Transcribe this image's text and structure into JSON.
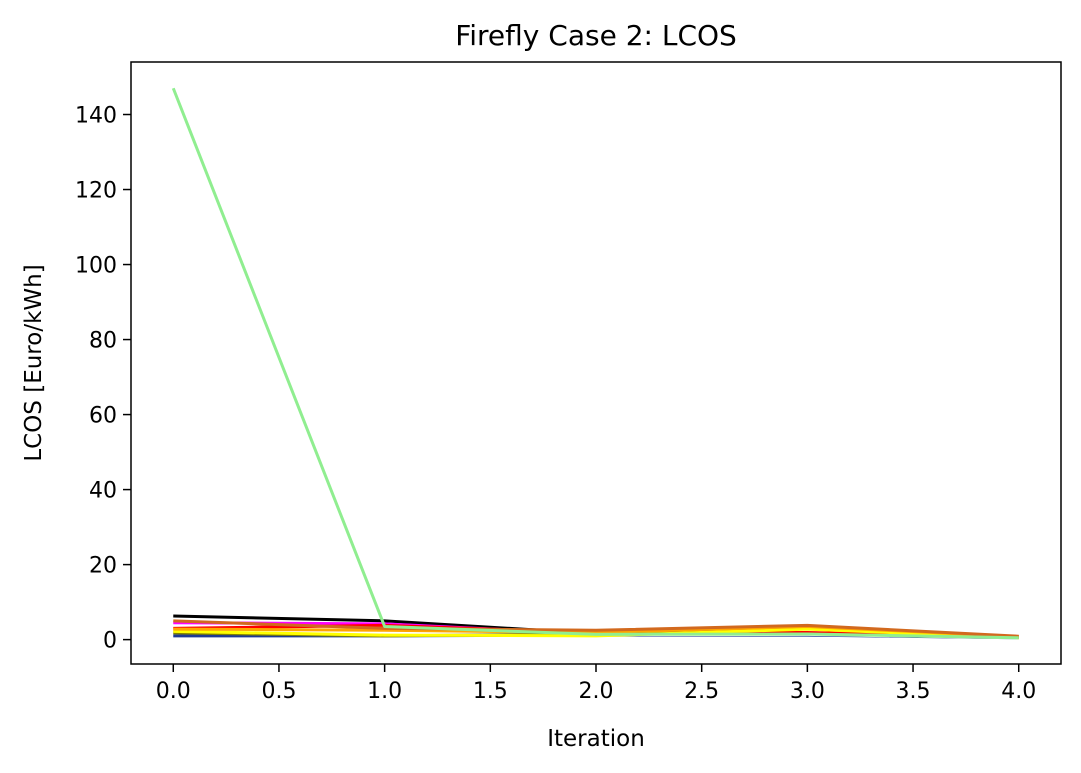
{
  "chart_data": {
    "type": "line",
    "title": "Firefly Case 2: LCOS",
    "xlabel": "Iteration",
    "ylabel": "LCOS [Euro/kWh]",
    "xlim": [
      -0.2,
      4.2
    ],
    "ylim": [
      -6.5,
      154
    ],
    "x_ticks": [
      0.0,
      0.5,
      1.0,
      1.5,
      2.0,
      2.5,
      3.0,
      3.5,
      4.0
    ],
    "x_tick_labels": [
      "0.0",
      "0.5",
      "1.0",
      "1.5",
      "2.0",
      "2.5",
      "3.0",
      "3.5",
      "4.0"
    ],
    "y_ticks": [
      0,
      20,
      40,
      60,
      80,
      100,
      120,
      140
    ],
    "y_tick_labels": [
      "0",
      "20",
      "40",
      "60",
      "80",
      "100",
      "120",
      "140"
    ],
    "grid": false,
    "legend": "none",
    "x": [
      0,
      1,
      2,
      3,
      4
    ],
    "series": [
      {
        "color": "#1f3a93",
        "values": [
          1.0,
          1.0,
          1.2,
          1.2,
          0.5
        ]
      },
      {
        "color": "#000000",
        "values": [
          6.3,
          5.0,
          1.6,
          1.7,
          0.6
        ]
      },
      {
        "color": "#ff00ff",
        "values": [
          4.5,
          4.2,
          1.5,
          1.6,
          0.6
        ]
      },
      {
        "color": "#ff0000",
        "values": [
          3.0,
          3.8,
          1.8,
          1.9,
          0.6
        ]
      },
      {
        "color": "#ffffff",
        "values": [
          2.5,
          2.2,
          1.3,
          1.4,
          0.5
        ]
      },
      {
        "color": "#808000",
        "values": [
          1.8,
          1.0,
          1.5,
          3.2,
          0.7
        ]
      },
      {
        "color": "#ffff00",
        "values": [
          2.2,
          1.2,
          1.0,
          2.8,
          0.5
        ]
      },
      {
        "color": "#ffa500",
        "values": [
          2.8,
          2.5,
          1.9,
          3.5,
          0.8
        ]
      },
      {
        "color": "#d2691e",
        "values": [
          5.0,
          3.0,
          2.5,
          3.8,
          0.9
        ]
      },
      {
        "color": "#90ee90",
        "values": [
          147.0,
          3.5,
          1.4,
          1.5,
          0.5
        ]
      }
    ]
  }
}
